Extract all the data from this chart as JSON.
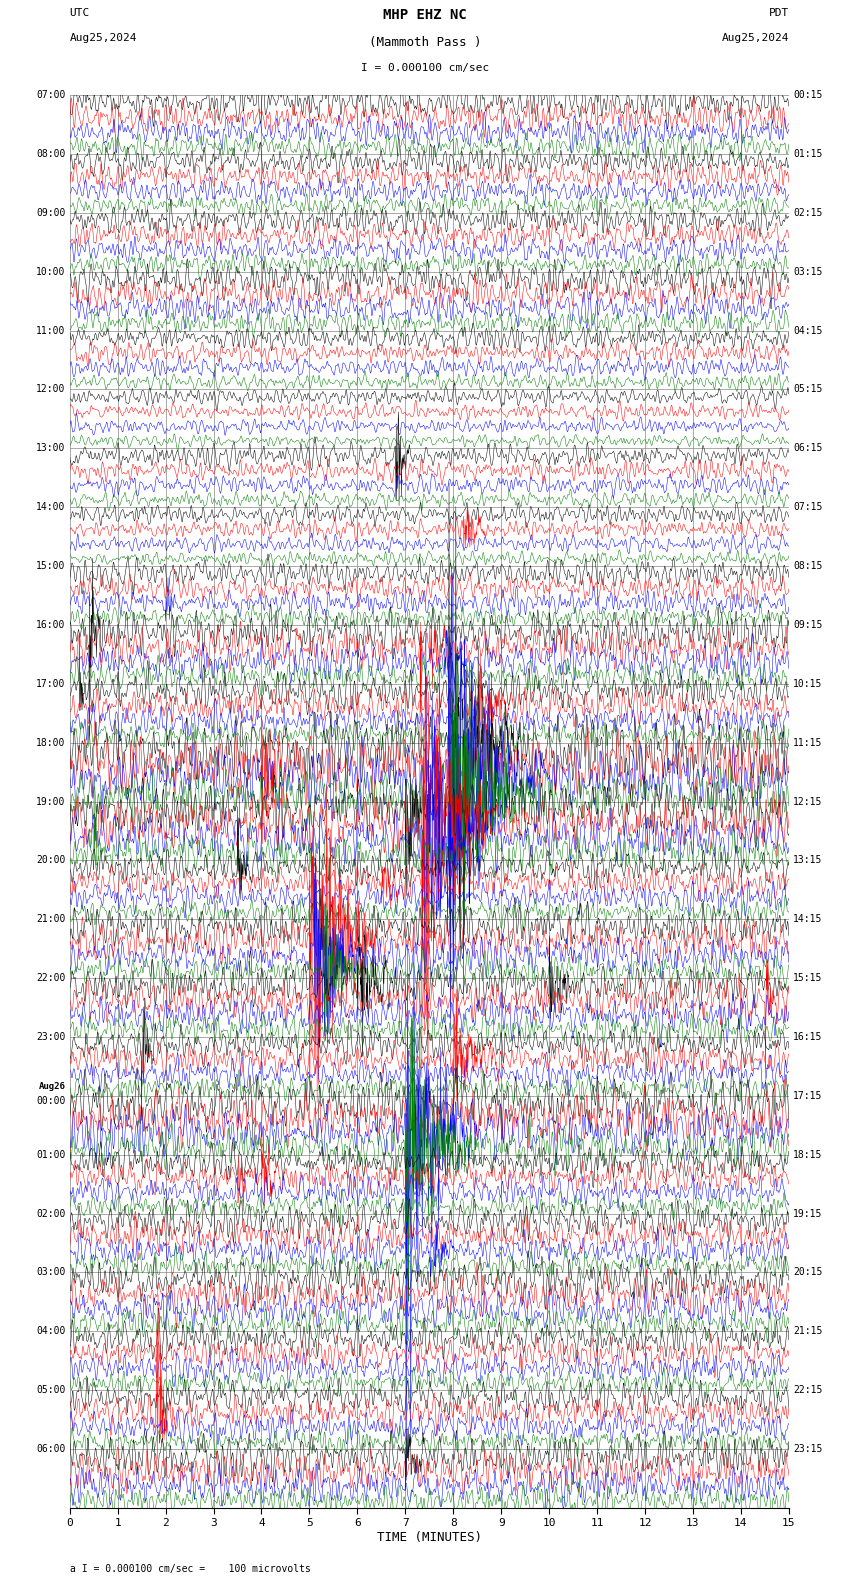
{
  "title_line1": "MHP EHZ NC",
  "title_line2": "(Mammoth Pass )",
  "scale_text": "I = 0.000100 cm/sec",
  "footer_text": "a I = 0.000100 cm/sec =    100 microvolts",
  "utc_label": "UTC",
  "pdt_label": "PDT",
  "date_left": "Aug25,2024",
  "date_right": "Aug25,2024",
  "xlabel": "TIME (MINUTES)",
  "xticks": [
    0,
    1,
    2,
    3,
    4,
    5,
    6,
    7,
    8,
    9,
    10,
    11,
    12,
    13,
    14,
    15
  ],
  "left_times": [
    "07:00",
    "08:00",
    "09:00",
    "10:00",
    "11:00",
    "12:00",
    "13:00",
    "14:00",
    "15:00",
    "16:00",
    "17:00",
    "18:00",
    "19:00",
    "20:00",
    "21:00",
    "22:00",
    "23:00",
    "Aug26\n00:00",
    "01:00",
    "02:00",
    "03:00",
    "04:00",
    "05:00",
    "06:00"
  ],
  "right_times": [
    "00:15",
    "01:15",
    "02:15",
    "03:15",
    "04:15",
    "05:15",
    "06:15",
    "07:15",
    "08:15",
    "09:15",
    "10:15",
    "11:15",
    "12:15",
    "13:15",
    "14:15",
    "15:15",
    "16:15",
    "17:15",
    "18:15",
    "19:15",
    "20:15",
    "21:15",
    "22:15",
    "23:15"
  ],
  "n_rows": 24,
  "traces_per_row": 4,
  "colors": [
    "black",
    "red",
    "blue",
    "green"
  ],
  "bg_color": "white",
  "grid_color": "#888888",
  "figsize": [
    8.5,
    15.84
  ],
  "dpi": 100,
  "seed": 42
}
